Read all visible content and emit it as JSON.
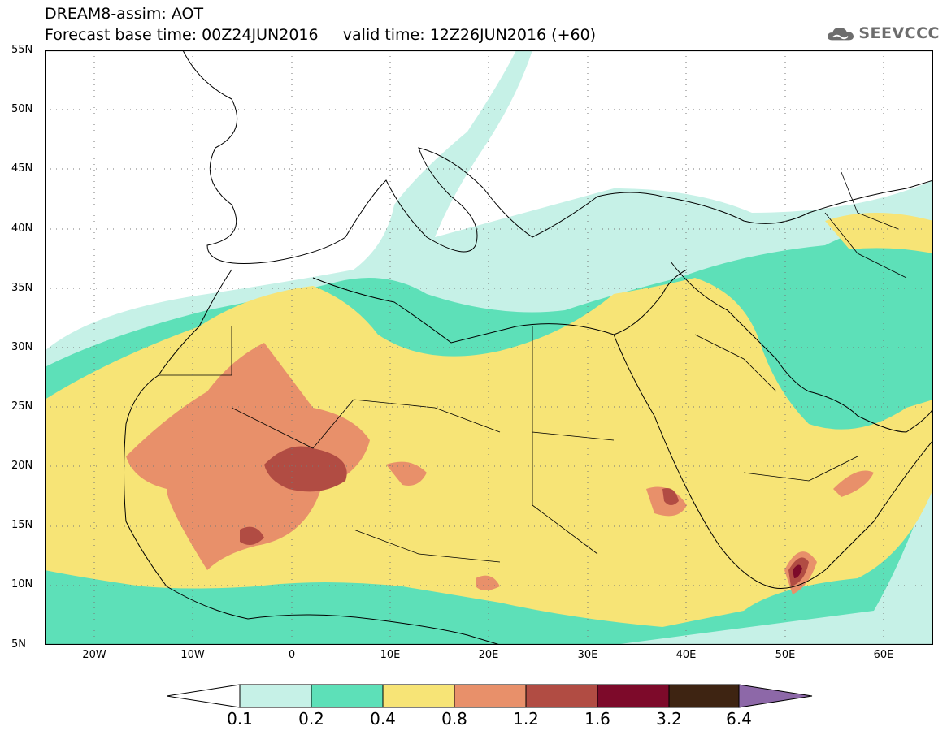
{
  "header": {
    "title_line1": "DREAM8-assim: AOT",
    "title_line2": "Forecast base time: 00Z24JUN2016     valid time: 12Z26JUN2016 (+60)",
    "logo_text": "SEEVCCC"
  },
  "map": {
    "projection": "lat-lon",
    "lon_range": [
      -25,
      65
    ],
    "lat_range": [
      5,
      55
    ],
    "lat_tick_labels": [
      "55N",
      "50N",
      "45N",
      "40N",
      "35N",
      "30N",
      "25N",
      "20N",
      "15N",
      "10N",
      "5N"
    ],
    "lon_tick_labels": [
      "20W",
      "10W",
      "0",
      "10E",
      "20E",
      "30E",
      "40E",
      "50E",
      "60E"
    ],
    "grid": "dotted",
    "colors": {
      "0.1-0.2": "#c6f1e7",
      "0.2-0.4": "#5de0b8",
      "0.4-0.8": "#f7e476",
      "0.8-1.2": "#e8906a",
      "1.2-1.6": "#b14c43",
      "1.6-3.2": "#7d0a2a",
      "3.2-6.4": "#3e2412",
      ">6.4": "#8d68a8"
    }
  },
  "colorbar": {
    "levels": [
      "0.1",
      "0.2",
      "0.4",
      "0.8",
      "1.2",
      "1.6",
      "3.2",
      "6.4"
    ],
    "colors": [
      "#ffffff",
      "#c6f1e7",
      "#5de0b8",
      "#f7e476",
      "#e8906a",
      "#b14c43",
      "#7d0a2a",
      "#3e2412",
      "#8d68a8"
    ]
  }
}
